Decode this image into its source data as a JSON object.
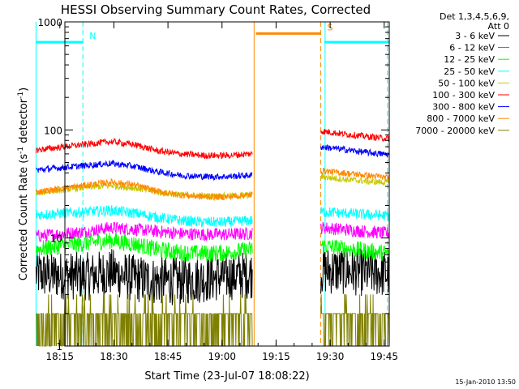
{
  "chart_data": {
    "type": "line",
    "title": "HESSI Observing Summary Count Rates, Corrected",
    "xlabel": "Start Time (23-Jul-07 18:08:22)",
    "ylabel_main": "Corrected Count Rate (s",
    "ylabel_sup1": "-1",
    "ylabel_mid": " detector",
    "ylabel_sup2": "-1",
    "ylabel_end": ")",
    "yscale": "log",
    "ylim": [
      1,
      1000
    ],
    "xlim": [
      8,
      98
    ],
    "x_unit": "minutes after 18:08:22",
    "x_ticks": [
      {
        "x": 6.6,
        "label": "18:15"
      },
      {
        "x": 21.6,
        "label": "18:30"
      },
      {
        "x": 36.6,
        "label": "18:45"
      },
      {
        "x": 51.6,
        "label": "19:00"
      },
      {
        "x": 66.6,
        "label": "19:15"
      },
      {
        "x": 81.6,
        "label": "19:30"
      },
      {
        "x": 96.6,
        "label": "19:45"
      }
    ],
    "y_ticks": [
      {
        "y": 1,
        "label": "1"
      },
      {
        "y": 10,
        "label": "10"
      },
      {
        "y": 100,
        "label": "100"
      },
      {
        "y": 1000,
        "label": "1000"
      }
    ],
    "legend_header": [
      "Det 1,3,4,5,6,9,",
      "Att 0"
    ],
    "legend_position": "top-right",
    "segments": [
      [
        0,
        60
      ],
      [
        79,
        98
      ]
    ],
    "series": [
      {
        "name": "3 - 6 keV",
        "color": "#000000",
        "levels": [
          4.5,
          4.4,
          4.8,
          4.2,
          4.0,
          4.0,
          4.2,
          4.4,
          4.6,
          4.8,
          5.0,
          5.0,
          5.0,
          4.8,
          4.7
        ],
        "noise": 0.45
      },
      {
        "name": "6 - 12 keV",
        "color": "#ff00ff",
        "levels": [
          11.0,
          11.5,
          12.5,
          12.0,
          11.5,
          11.0,
          10.8,
          10.8,
          11.0,
          11.5,
          12.0,
          12.5,
          12.0,
          11.5,
          11.0
        ],
        "noise": 0.12
      },
      {
        "name": "12 - 25 keV",
        "color": "#00ff00",
        "levels": [
          8.5,
          9.0,
          9.5,
          8.8,
          7.8,
          7.3,
          7.2,
          7.3,
          7.8,
          8.5,
          8.8,
          8.5,
          8.0,
          7.6,
          7.2
        ],
        "noise": 0.16
      },
      {
        "name": "25 - 50 keV",
        "color": "#00ffff",
        "levels": [
          17.0,
          17.5,
          18.0,
          17.0,
          15.5,
          14.5,
          14.0,
          14.0,
          14.5,
          16.0,
          17.0,
          17.5,
          17.0,
          16.5,
          16.0
        ],
        "noise": 0.1
      },
      {
        "name": "50 - 100 keV",
        "color": "#c8c800",
        "levels": [
          28.0,
          29.5,
          30.5,
          29.0,
          26.5,
          25.0,
          24.5,
          24.5,
          25.0,
          26.0,
          40.0,
          37.0,
          35.0,
          33.5,
          32.5
        ],
        "noise": 0.06
      },
      {
        "name": "100 - 300 keV",
        "color": "#ff0000",
        "levels": [
          70.0,
          74.0,
          78.0,
          73.0,
          64.0,
          60.0,
          58.0,
          58.0,
          60.0,
          65.0,
          105.0,
          98.0,
          92.0,
          87.0,
          83.0
        ],
        "noise": 0.06
      },
      {
        "name": "300 - 800 keV",
        "color": "#0000ff",
        "levels": [
          45.0,
          47.0,
          49.0,
          46.0,
          41.0,
          38.0,
          37.0,
          37.0,
          38.0,
          40.0,
          75.0,
          70.0,
          66.0,
          62.0,
          59.0
        ],
        "noise": 0.06
      },
      {
        "name": "800 - 7000 keV",
        "color": "#ff8800",
        "levels": [
          29.0,
          31.0,
          33.0,
          31.0,
          27.0,
          25.0,
          24.0,
          24.0,
          25.0,
          27.0,
          46.0,
          42.0,
          40.0,
          38.0,
          36.0
        ],
        "noise": 0.06
      },
      {
        "name": "7000 - 20000 keV",
        "color": "#808000",
        "levels": [
          1.5,
          1.5,
          1.5,
          1.5,
          1.5,
          1.5,
          1.5,
          1.5,
          1.5,
          1.5,
          1.5,
          1.5,
          1.5,
          1.5,
          1.5
        ],
        "noise": 0,
        "quantized": true
      }
    ],
    "annotations": {
      "flags": [
        {
          "label": "N",
          "color": "#00ffff",
          "x0": 0,
          "x1": 13,
          "y": 650
        },
        {
          "label": "S",
          "color": "#ff8800",
          "x0": 61,
          "x1": 79,
          "y": 780
        },
        {
          "label": "",
          "color": "#00ffff",
          "x0": 80,
          "x1": 98,
          "y": 650
        }
      ],
      "vlines": [
        {
          "x": 0,
          "color": "#00ffff",
          "dashed": false
        },
        {
          "x": 13,
          "color": "#00ffff",
          "dashed": true
        },
        {
          "x": 60.5,
          "color": "#ff8800",
          "dashed": false
        },
        {
          "x": 79,
          "color": "#ff8800",
          "dashed": true
        },
        {
          "x": 80.2,
          "color": "#00ffff",
          "dashed": false
        },
        {
          "x": 97.5,
          "color": "#00ffff",
          "dashed": true
        }
      ]
    },
    "footer": "15-Jan-2010 13:50"
  }
}
